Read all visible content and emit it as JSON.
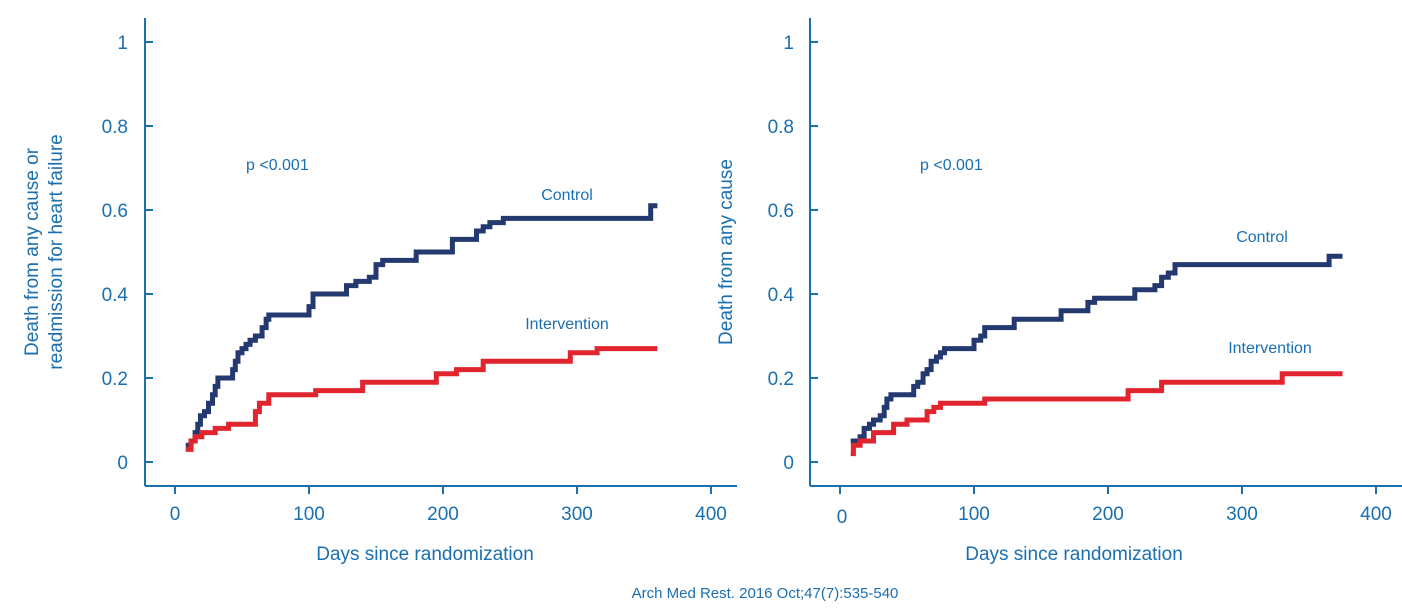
{
  "colors": {
    "axis": "#1a6fb0",
    "text": "#1a6fb0",
    "control": "#24396f",
    "intervention": "#e0252f"
  },
  "citation": "Arch Med Rest. 2016 Oct;47(7):535-540",
  "chart_data": [
    {
      "type": "line",
      "step": true,
      "title": "",
      "xlabel": "Days since randomization",
      "ylabel": "Death from any cause or readmission for heart failure",
      "ylabel_lines": [
        "Death from any cause or",
        "readmission for heart failure"
      ],
      "xlim": [
        0,
        400
      ],
      "ylim": [
        0,
        1
      ],
      "xticks": [
        0,
        100,
        200,
        300,
        400
      ],
      "yticks": [
        0,
        0.2,
        0.4,
        0.6,
        0.8,
        1
      ],
      "ytick_labels": [
        "0",
        "0.2",
        "0.4",
        "0.6",
        "0.8",
        "1"
      ],
      "grid": false,
      "annotation": "p <0.001",
      "series": [
        {
          "name": "Control",
          "color": "#24396f",
          "x": [
            8,
            12,
            15,
            17,
            19,
            22,
            25,
            28,
            30,
            32,
            35,
            40,
            43,
            45,
            47,
            50,
            53,
            56,
            60,
            65,
            68,
            70,
            75,
            100,
            103,
            107,
            110,
            128,
            135,
            145,
            150,
            155,
            170,
            180,
            190,
            200,
            207,
            210,
            225,
            230,
            235,
            245,
            250,
            270,
            300,
            320,
            340,
            355,
            360
          ],
          "y": [
            0.04,
            0.05,
            0.07,
            0.09,
            0.11,
            0.12,
            0.14,
            0.16,
            0.18,
            0.2,
            0.2,
            0.2,
            0.22,
            0.24,
            0.26,
            0.27,
            0.28,
            0.29,
            0.3,
            0.32,
            0.34,
            0.35,
            0.35,
            0.37,
            0.4,
            0.4,
            0.4,
            0.42,
            0.43,
            0.44,
            0.47,
            0.48,
            0.48,
            0.5,
            0.5,
            0.5,
            0.53,
            0.53,
            0.55,
            0.56,
            0.57,
            0.58,
            0.58,
            0.58,
            0.58,
            0.58,
            0.58,
            0.61,
            0.61
          ]
        },
        {
          "name": "Intervention",
          "color": "#e0252f",
          "x": [
            8,
            12,
            15,
            20,
            25,
            30,
            40,
            55,
            60,
            63,
            70,
            100,
            105,
            140,
            160,
            190,
            195,
            205,
            210,
            230,
            240,
            260,
            270,
            295,
            300,
            315,
            360
          ],
          "y": [
            0.03,
            0.05,
            0.06,
            0.07,
            0.07,
            0.08,
            0.09,
            0.09,
            0.12,
            0.14,
            0.16,
            0.16,
            0.17,
            0.19,
            0.19,
            0.19,
            0.21,
            0.21,
            0.22,
            0.24,
            0.24,
            0.24,
            0.24,
            0.26,
            0.26,
            0.27,
            0.27
          ]
        }
      ]
    },
    {
      "type": "line",
      "step": true,
      "title": "",
      "xlabel": "Days since randomization",
      "ylabel": "Death from any cause",
      "ylabel_lines": [
        "Death from any cause"
      ],
      "xlim": [
        0,
        400
      ],
      "ylim": [
        0,
        1
      ],
      "xticks": [
        0,
        100,
        200,
        300,
        400
      ],
      "yticks": [
        0,
        0.2,
        0.4,
        0.6,
        0.8,
        1
      ],
      "ytick_labels": [
        "0",
        "0.2",
        "0.4",
        "0.6",
        "0.8",
        "1"
      ],
      "grid": false,
      "annotation": "p <0.001",
      "series": [
        {
          "name": "Control",
          "color": "#24396f",
          "x": [
            8,
            15,
            18,
            22,
            25,
            30,
            33,
            35,
            38,
            45,
            50,
            55,
            58,
            62,
            65,
            68,
            72,
            75,
            78,
            95,
            100,
            105,
            108,
            120,
            130,
            150,
            165,
            180,
            185,
            190,
            200,
            210,
            220,
            225,
            235,
            240,
            245,
            250,
            270,
            300,
            330,
            350,
            365,
            375
          ],
          "y": [
            0.05,
            0.06,
            0.08,
            0.09,
            0.1,
            0.11,
            0.13,
            0.15,
            0.16,
            0.16,
            0.16,
            0.18,
            0.19,
            0.21,
            0.22,
            0.24,
            0.25,
            0.26,
            0.27,
            0.27,
            0.29,
            0.3,
            0.32,
            0.32,
            0.34,
            0.34,
            0.36,
            0.36,
            0.38,
            0.39,
            0.39,
            0.39,
            0.41,
            0.41,
            0.42,
            0.44,
            0.45,
            0.47,
            0.47,
            0.47,
            0.47,
            0.47,
            0.49,
            0.49
          ]
        },
        {
          "name": "Intervention",
          "color": "#e0252f",
          "x": [
            8,
            10,
            15,
            25,
            40,
            50,
            65,
            70,
            75,
            108,
            150,
            215,
            240,
            300,
            330,
            375
          ],
          "y": [
            0.02,
            0.04,
            0.05,
            0.07,
            0.09,
            0.1,
            0.12,
            0.13,
            0.14,
            0.15,
            0.15,
            0.17,
            0.19,
            0.19,
            0.21,
            0.21
          ]
        }
      ]
    }
  ]
}
